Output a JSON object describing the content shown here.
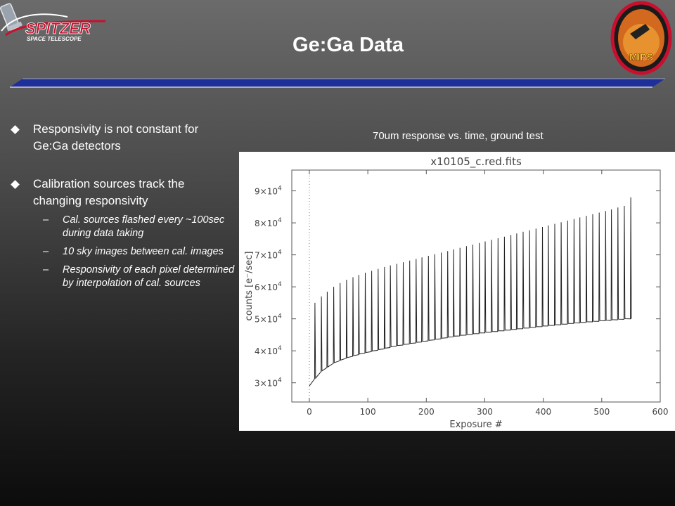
{
  "slide": {
    "title": "Ge:Ga Data",
    "logo_left_text": "SPITZER",
    "logo_left_subtext": "SPACE TELESCOPE",
    "logo_right_text": "MIPS"
  },
  "bullets": [
    {
      "text": "Responsivity is not constant for Ge:Ga detectors",
      "subitems": []
    },
    {
      "text": "Calibration sources track the changing responsivity",
      "subitems": [
        "Cal. sources flashed every ~100sec during data taking",
        "10 sky images between cal. images",
        "Responsivity of each pixel determined by interpolation of cal. sources"
      ]
    }
  ],
  "chart_caption": "70um response vs. time, ground test",
  "chart_data": {
    "type": "line",
    "title": "x10105_c.red.fits",
    "xlabel": "Exposure #",
    "ylabel": "counts [e⁻/sec]",
    "xlim": [
      -30,
      600
    ],
    "ylim": [
      24000,
      96500
    ],
    "x_ticks": [
      "0",
      "100",
      "200",
      "300",
      "400",
      "500",
      "600"
    ],
    "y_ticks": [
      {
        "value": 30000,
        "mantissa": "3×10",
        "exp": "4"
      },
      {
        "value": 40000,
        "mantissa": "4×10",
        "exp": "4"
      },
      {
        "value": 50000,
        "mantissa": "5×10",
        "exp": "4"
      },
      {
        "value": 60000,
        "mantissa": "6×10",
        "exp": "4"
      },
      {
        "value": 70000,
        "mantissa": "7×10",
        "exp": "4"
      },
      {
        "value": 80000,
        "mantissa": "8×10",
        "exp": "4"
      },
      {
        "value": 90000,
        "mantissa": "9×10",
        "exp": "4"
      }
    ],
    "vline_x": 0,
    "baseline": {
      "x": [
        0,
        10,
        20,
        40,
        60,
        80,
        100,
        150,
        200,
        250,
        300,
        350,
        400,
        450,
        500,
        550
      ],
      "y": [
        29000,
        31500,
        33500,
        36000,
        37500,
        38600,
        39500,
        41500,
        43000,
        44500,
        45600,
        46600,
        47600,
        48500,
        49300,
        50000
      ]
    },
    "calibration_flashes": {
      "x": [
        9,
        20,
        30,
        41,
        52,
        63,
        74,
        84,
        95,
        106,
        117,
        128,
        138,
        149,
        160,
        171,
        182,
        192,
        203,
        214,
        225,
        236,
        246,
        257,
        268,
        279,
        290,
        300,
        311,
        322,
        333,
        344,
        354,
        365,
        376,
        387,
        398,
        408,
        419,
        430,
        441,
        452,
        462,
        473,
        484,
        495,
        506,
        516,
        527,
        538,
        549
      ],
      "peak": [
        55000,
        57000,
        58500,
        60000,
        61200,
        62200,
        63000,
        63700,
        64400,
        65000,
        65600,
        66200,
        66700,
        67200,
        67700,
        68200,
        68700,
        69200,
        69700,
        70200,
        70700,
        71200,
        71700,
        72200,
        72700,
        73200,
        73700,
        74200,
        74700,
        75200,
        75700,
        76200,
        76700,
        77200,
        77700,
        78200,
        78700,
        79200,
        79700,
        80200,
        80700,
        81200,
        81700,
        82200,
        82700,
        83200,
        83700,
        84200,
        84800,
        85300,
        88000
      ]
    },
    "grid": false,
    "legend": "none"
  }
}
